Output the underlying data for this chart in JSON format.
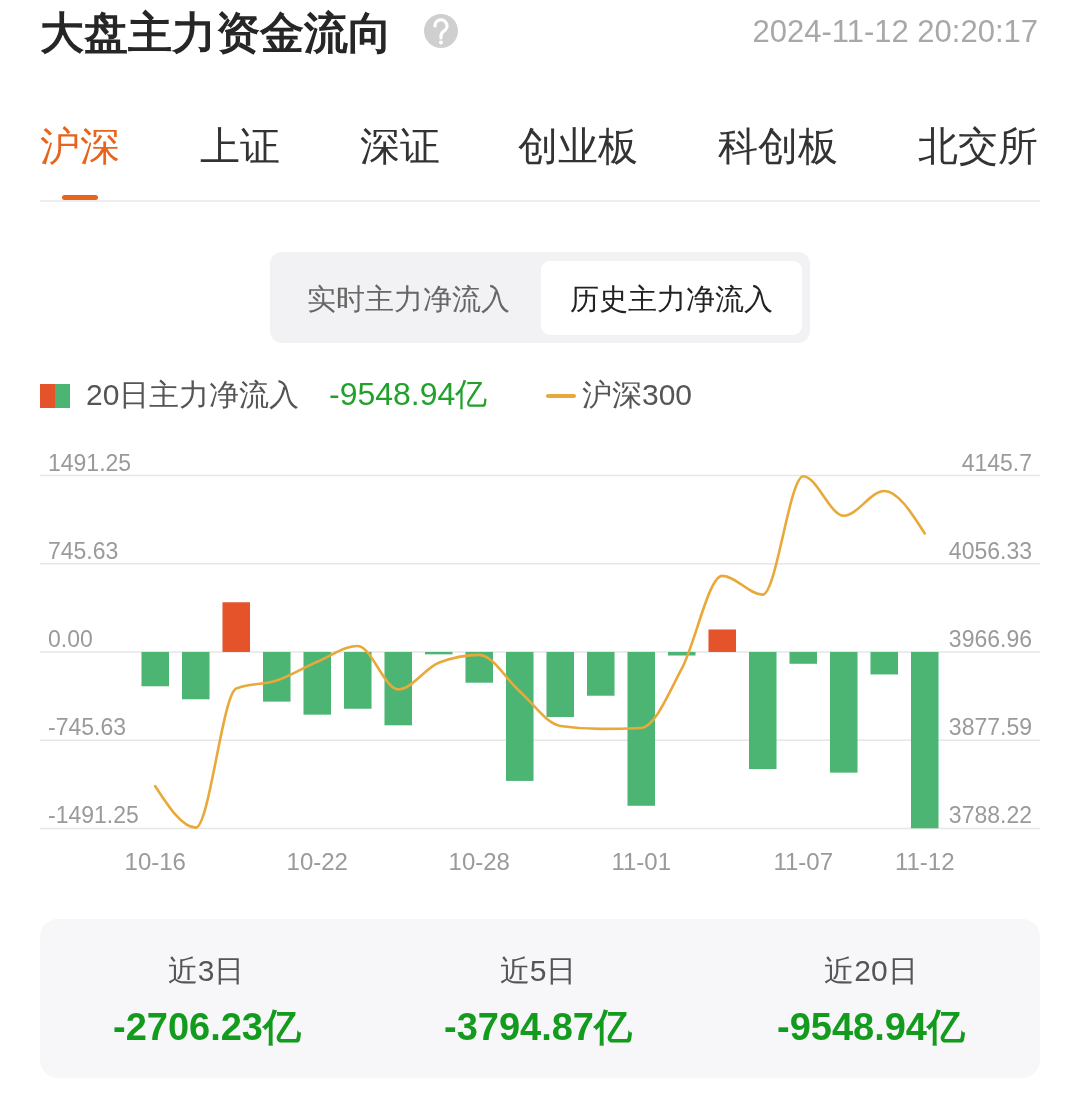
{
  "chart_data": {
    "type": "bar",
    "title": "大盘主力资金流向",
    "subtitle": "2024-11-12 20:20:17",
    "categories": [
      "10-16",
      null,
      null,
      null,
      "10-22",
      null,
      null,
      null,
      "10-28",
      null,
      null,
      null,
      "11-01",
      null,
      null,
      null,
      "11-07",
      null,
      null,
      "11-12"
    ],
    "series": [
      {
        "name": "20日主力净流入",
        "colors": [
          "#4cb573",
          "#4cb573",
          "#e5532b",
          "#4cb573",
          "#4cb573",
          "#4cb573",
          "#4cb573",
          "#4cb573",
          "#4cb573",
          "#4cb573",
          "#4cb573",
          "#4cb573",
          "#4cb573",
          "#4cb573",
          "#e5532b",
          "#4cb573",
          "#4cb573",
          "#4cb573",
          "#4cb573",
          "#4cb573"
        ],
        "values": [
          -290,
          -400,
          420,
          -420,
          -530,
          -480,
          -620,
          -20,
          -260,
          -1090,
          -550,
          -370,
          -1300,
          -30,
          190,
          -990,
          -100,
          -1020,
          -190,
          -1490
        ]
      },
      {
        "name": "沪深300",
        "type": "line",
        "axis": "y2",
        "color": "#e9a93a",
        "values": [
          3831,
          3789,
          3930,
          3938,
          3957,
          3973,
          3929,
          3956,
          3964,
          3927,
          3892,
          3889,
          3890,
          3950,
          4044,
          4025,
          4145,
          4105,
          4130,
          4087
        ]
      }
    ],
    "ylim": [
      -1491.25,
      1491.25
    ],
    "yticks": [
      -1491.25,
      -745.63,
      {
        "value": 0,
        "label": "0.00"
      },
      745.63,
      1491.25
    ],
    "y2lim": [
      3788.22,
      4145.7
    ],
    "y2ticks": [
      3788.22,
      3877.59,
      3966.96,
      4056.33,
      4145.7
    ],
    "grid": "y",
    "legend": "top left",
    "annotations": [
      "沪深",
      "上证",
      "深证",
      "创业板",
      "科创板",
      "北交所",
      "实时主力净流入",
      "历史主力净流入",
      "-9548.94亿",
      "近3日",
      "-2706.23亿",
      "近5日",
      "-3794.87亿",
      "近20日",
      "-9548.94亿"
    ]
  }
}
